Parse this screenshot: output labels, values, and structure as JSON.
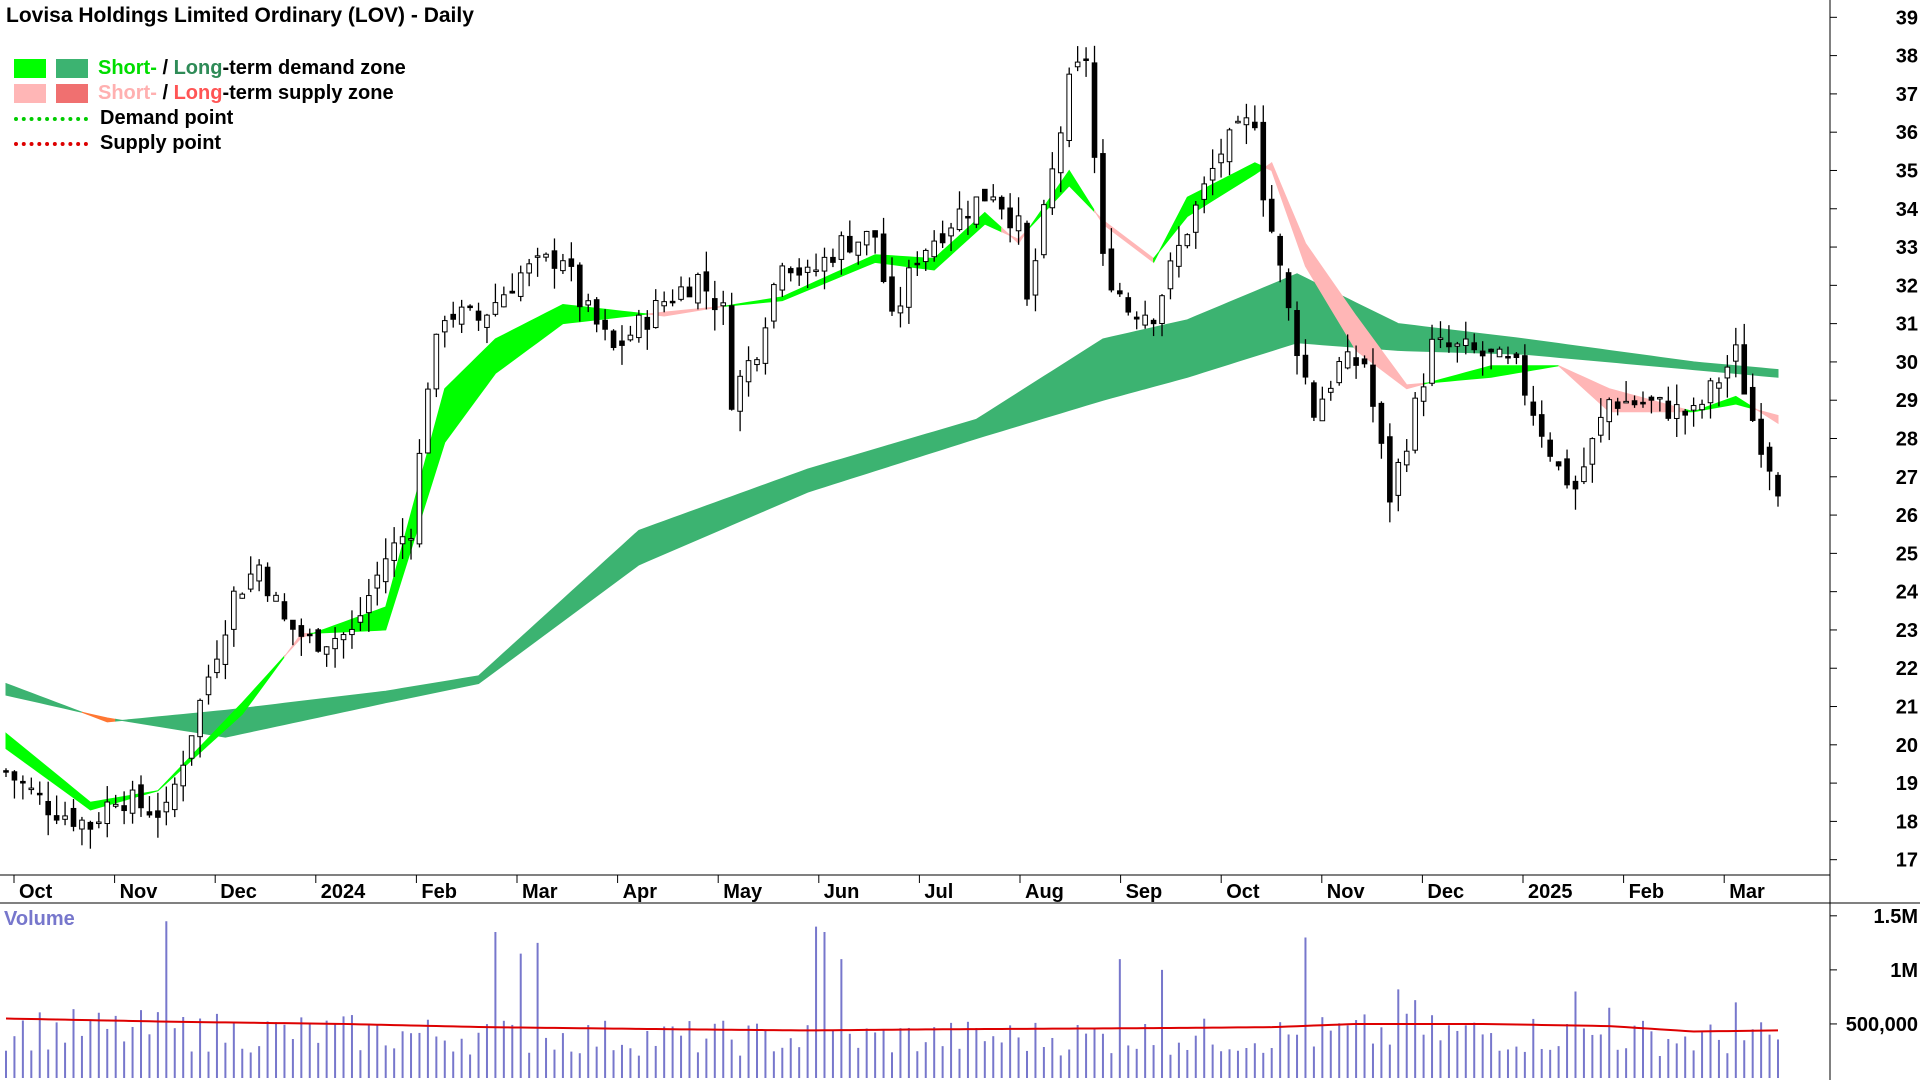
{
  "chart_data": [
    {
      "type": "candlestick",
      "title": "Lovisa Holdings Limited Ordinary (LOV) - Daily",
      "y_ticks": [
        17,
        18,
        19,
        20,
        21,
        22,
        23,
        24,
        25,
        26,
        27,
        28,
        29,
        30,
        31,
        32,
        33,
        34,
        35,
        36,
        37,
        38,
        39
      ],
      "ylim": [
        16.6,
        39.4
      ],
      "x_labels": [
        "Oct",
        "Nov",
        "Dec",
        "2024",
        "Feb",
        "Mar",
        "Apr",
        "May",
        "Jun",
        "Jul",
        "Aug",
        "Sep",
        "Oct",
        "Nov",
        "Dec",
        "2025",
        "Feb",
        "Mar"
      ],
      "price_path": [
        [
          0,
          19.3
        ],
        [
          5,
          18.4
        ],
        [
          10,
          17.9
        ],
        [
          13,
          18.7
        ],
        [
          16,
          18.4
        ],
        [
          19,
          18.2
        ],
        [
          22,
          20.4
        ],
        [
          27,
          23.9
        ],
        [
          30,
          24.7
        ],
        [
          33,
          23.2
        ],
        [
          36,
          22.7
        ],
        [
          41,
          22.9
        ],
        [
          45,
          24.9
        ],
        [
          48,
          25.7
        ],
        [
          49,
          27.5
        ],
        [
          50,
          29.5
        ],
        [
          52,
          31.3
        ],
        [
          56,
          31.1
        ],
        [
          61,
          32.3
        ],
        [
          66,
          32.8
        ],
        [
          68,
          31.6
        ],
        [
          72,
          30.3
        ],
        [
          78,
          31.6
        ],
        [
          82,
          32.2
        ],
        [
          85,
          31.3
        ],
        [
          86,
          29.1
        ],
        [
          89,
          30.4
        ],
        [
          92,
          32.8
        ],
        [
          95,
          32.2
        ],
        [
          99,
          33.1
        ],
        [
          103,
          33.3
        ],
        [
          105,
          31.0
        ],
        [
          108,
          32.8
        ],
        [
          113,
          33.9
        ],
        [
          117,
          34.5
        ],
        [
          120,
          33.5
        ],
        [
          121,
          31.5
        ],
        [
          126,
          37.2
        ],
        [
          128,
          38.0
        ],
        [
          130,
          32.6
        ],
        [
          133,
          31.4
        ],
        [
          136,
          31.3
        ],
        [
          140,
          33.5
        ],
        [
          144,
          35.5
        ],
        [
          148,
          36.4
        ],
        [
          149,
          34.5
        ],
        [
          152,
          31.3
        ],
        [
          155,
          28.7
        ],
        [
          158,
          29.9
        ],
        [
          161,
          30.0
        ],
        [
          164,
          26.5
        ],
        [
          166,
          28.0
        ],
        [
          169,
          30.4
        ],
        [
          173,
          30.3
        ],
        [
          176,
          30.1
        ],
        [
          179,
          29.8
        ],
        [
          184,
          27.2
        ],
        [
          186,
          26.7
        ],
        [
          190,
          29.0
        ],
        [
          195,
          28.9
        ],
        [
          200,
          28.6
        ],
        [
          205,
          30.2
        ],
        [
          207,
          28.5
        ],
        [
          210,
          26.8
        ]
      ],
      "zones": [
        {
          "name": "Short-term demand/supply zone",
          "fast": [
            [
              0,
              20.3
            ],
            [
              10,
              18.5
            ],
            [
              18,
              18.8
            ],
            [
              28,
              21.1
            ],
            [
              35,
              22.8
            ],
            [
              45,
              23.6
            ],
            [
              52,
              29.3
            ],
            [
              58,
              30.6
            ],
            [
              66,
              31.5
            ],
            [
              78,
              31.2
            ],
            [
              92,
              31.7
            ],
            [
              103,
              32.8
            ],
            [
              110,
              32.7
            ],
            [
              116,
              33.9
            ],
            [
              120,
              33.1
            ],
            [
              126,
              35.0
            ],
            [
              130,
              33.6
            ],
            [
              136,
              32.6
            ],
            [
              140,
              34.3
            ],
            [
              148,
              35.2
            ],
            [
              150,
              35.0
            ],
            [
              154,
              32.5
            ],
            [
              160,
              30.3
            ],
            [
              166,
              29.3
            ],
            [
              176,
              29.9
            ],
            [
              184,
              29.9
            ],
            [
              190,
              28.7
            ],
            [
              200,
              28.7
            ],
            [
              205,
              29.1
            ],
            [
              210,
              28.4
            ]
          ],
          "slow": [
            [
              0,
              19.9
            ],
            [
              10,
              18.3
            ],
            [
              18,
              18.8
            ],
            [
              28,
              20.8
            ],
            [
              35,
              22.9
            ],
            [
              45,
              23.0
            ],
            [
              52,
              27.9
            ],
            [
              58,
              29.7
            ],
            [
              66,
              31.0
            ],
            [
              78,
              31.3
            ],
            [
              92,
              31.6
            ],
            [
              103,
              32.6
            ],
            [
              110,
              32.4
            ],
            [
              116,
              33.6
            ],
            [
              120,
              33.2
            ],
            [
              126,
              34.6
            ],
            [
              130,
              33.7
            ],
            [
              136,
              32.7
            ],
            [
              140,
              33.8
            ],
            [
              148,
              34.9
            ],
            [
              150,
              35.2
            ],
            [
              154,
              33.1
            ],
            [
              160,
              31.2
            ],
            [
              166,
              29.4
            ],
            [
              176,
              29.6
            ],
            [
              184,
              29.9
            ],
            [
              190,
              29.3
            ],
            [
              200,
              28.7
            ],
            [
              205,
              28.9
            ],
            [
              210,
              28.6
            ]
          ]
        },
        {
          "name": "Long-term demand/supply zone",
          "fast": [
            [
              0,
              21.6
            ],
            [
              12,
              20.6
            ],
            [
              26,
              20.9
            ],
            [
              45,
              21.4
            ],
            [
              56,
              21.8
            ],
            [
              75,
              25.6
            ],
            [
              95,
              27.2
            ],
            [
              115,
              28.5
            ],
            [
              130,
              30.6
            ],
            [
              140,
              31.1
            ],
            [
              153,
              32.3
            ],
            [
              165,
              31.0
            ],
            [
              180,
              30.6
            ],
            [
              200,
              30.0
            ],
            [
              210,
              29.8
            ]
          ],
          "slow": [
            [
              0,
              21.3
            ],
            [
              12,
              20.7
            ],
            [
              26,
              20.2
            ],
            [
              45,
              21.1
            ],
            [
              56,
              21.6
            ],
            [
              75,
              24.7
            ],
            [
              95,
              26.6
            ],
            [
              115,
              28.0
            ],
            [
              130,
              29.0
            ],
            [
              140,
              29.6
            ],
            [
              153,
              30.5
            ],
            [
              165,
              30.3
            ],
            [
              180,
              30.2
            ],
            [
              200,
              29.8
            ],
            [
              210,
              29.6
            ]
          ]
        }
      ],
      "legend": [
        {
          "prefix": "Short-",
          "sep": " / ",
          "mid": "Long",
          "suffix": "-term demand zone",
          "colors": [
            "#00ff00",
            "#3cb371"
          ]
        },
        {
          "prefix": "Short-",
          "sep": " / ",
          "mid": "Long",
          "suffix": "-term supply zone",
          "colors": [
            "#ffb6b6",
            "#f07070"
          ]
        },
        {
          "label": "Demand point",
          "color": "#00cc00"
        },
        {
          "label": "Supply point",
          "color": "#dd0000"
        }
      ],
      "colors": {
        "short_demand": "#00ff00",
        "long_demand": "#3cb371",
        "short_supply": "#ffb6b6",
        "long_supply": "#f07070",
        "zone_orange": "#ff7733"
      }
    },
    {
      "type": "bar",
      "title": "Volume",
      "y_ticks": [
        "500,000",
        "1M",
        "1.5M"
      ],
      "tick_values": [
        500000,
        1000000,
        1500000
      ],
      "ylim": [
        0,
        1600000
      ],
      "spikes": [
        [
          19,
          1450000
        ],
        [
          23,
          550000
        ],
        [
          58,
          1350000
        ],
        [
          61,
          1150000
        ],
        [
          63,
          1250000
        ],
        [
          96,
          1400000
        ],
        [
          97,
          1350000
        ],
        [
          99,
          1100000
        ],
        [
          132,
          1100000
        ],
        [
          137,
          1000000
        ],
        [
          154,
          1300000
        ],
        [
          165,
          820000
        ],
        [
          167,
          720000
        ],
        [
          186,
          800000
        ],
        [
          190,
          650000
        ],
        [
          205,
          700000
        ]
      ],
      "average": [
        [
          0,
          550000
        ],
        [
          20,
          520000
        ],
        [
          40,
          500000
        ],
        [
          57,
          470000
        ],
        [
          80,
          450000
        ],
        [
          95,
          440000
        ],
        [
          110,
          450000
        ],
        [
          133,
          460000
        ],
        [
          150,
          470000
        ],
        [
          160,
          500000
        ],
        [
          175,
          500000
        ],
        [
          190,
          480000
        ],
        [
          200,
          430000
        ],
        [
          210,
          440000
        ]
      ],
      "average_color": "#dd0000",
      "bar_color": "#7777cc"
    }
  ]
}
